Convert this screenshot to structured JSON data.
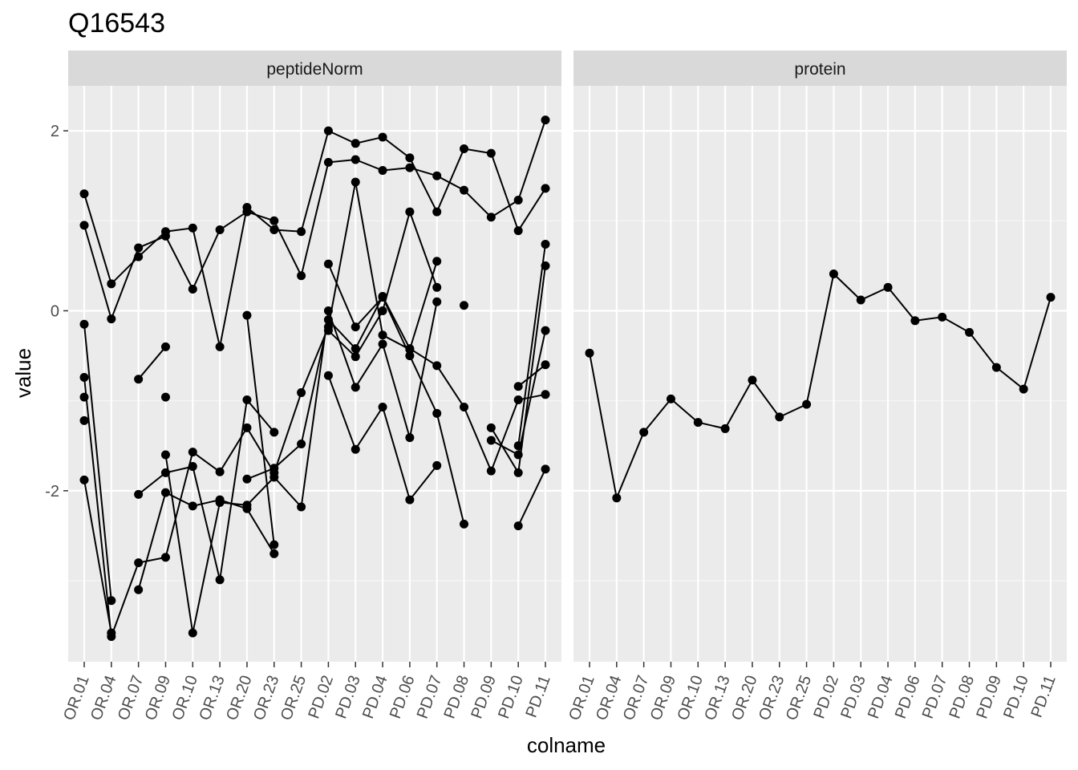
{
  "chart_data": {
    "type": "line",
    "title": "Q16543",
    "xlabel": "colname",
    "ylabel": "value",
    "ylim": [
      -3.9,
      2.5
    ],
    "y_ticks": [
      {
        "value": -2,
        "label": "-2"
      },
      {
        "value": 0,
        "label": "0"
      },
      {
        "value": 2,
        "label": "2"
      }
    ],
    "categories": [
      "OR.01",
      "OR.04",
      "OR.07",
      "OR.09",
      "OR.10",
      "OR.13",
      "OR.20",
      "OR.23",
      "OR.25",
      "PD.02",
      "PD.03",
      "PD.04",
      "PD.06",
      "PD.07",
      "PD.08",
      "PD.09",
      "PD.10",
      "PD.11"
    ],
    "grid": true,
    "panels": [
      {
        "strip": "peptideNorm",
        "series": [
          {
            "values": [
              1.3,
              0.3,
              0.6,
              0.88,
              0.92,
              -0.4,
              1.15,
              0.9,
              0.88,
              2.0,
              1.86,
              1.93,
              1.7,
              1.1,
              1.8,
              1.75,
              0.89,
              1.36
            ]
          },
          {
            "values": [
              0.95,
              -0.09,
              0.7,
              0.83,
              0.24,
              0.9,
              1.1,
              1.0,
              0.39,
              1.65,
              1.68,
              1.56,
              1.59,
              1.5,
              1.34,
              1.04,
              1.23,
              2.12
            ]
          },
          {
            "values": [
              -0.15,
              -3.22,
              null,
              null,
              null,
              null,
              -0.05,
              -2.6,
              null,
              0.52,
              -0.18,
              0.15,
              -0.5,
              -1.14,
              -2.37,
              null,
              -1.5,
              0.74
            ]
          },
          {
            "values": [
              -0.74,
              -3.62,
              -2.8,
              -2.74,
              -1.57,
              -1.79,
              -1.3,
              -1.8,
              -0.91,
              -0.18,
              1.43,
              -0.27,
              -0.43,
              0.55,
              null,
              -1.3,
              -1.8,
              0.5
            ]
          },
          {
            "values": [
              -0.96,
              null,
              -3.1,
              -2.02,
              -2.17,
              -2.1,
              -2.2,
              -2.7,
              null,
              -0.72,
              -1.54,
              -1.07,
              -2.1,
              -1.72,
              null,
              -1.44,
              -1.6,
              -0.22
            ]
          },
          {
            "values": [
              -1.22,
              null,
              -2.04,
              -1.8,
              -1.73,
              -2.99,
              -0.99,
              -1.35,
              null,
              -0.22,
              -0.51,
              0.0,
              1.1,
              0.26,
              null,
              null,
              -0.84,
              -0.6
            ]
          },
          {
            "values": [
              -1.88,
              -3.58,
              null,
              -1.6,
              -3.58,
              -2.13,
              -2.16,
              -1.85,
              -2.18,
              0.0,
              -0.85,
              -0.37,
              -1.41,
              0.1,
              null,
              null,
              -2.39,
              -1.76
            ]
          },
          {
            "values": [
              null,
              null,
              null,
              null,
              null,
              null,
              -1.87,
              -1.75,
              -1.48,
              -0.1,
              -0.42,
              0.16,
              -0.42,
              -0.61,
              -1.07,
              -1.78,
              -0.99,
              -0.93
            ]
          },
          {
            "values": [
              null,
              null,
              -0.76,
              -0.4,
              null,
              null,
              null,
              null,
              null,
              null,
              null,
              null,
              null,
              null,
              0.06,
              null,
              null,
              null
            ]
          },
          {
            "values": [
              null,
              null,
              null,
              -0.96,
              null,
              null,
              null,
              null,
              null,
              null,
              null,
              null,
              null,
              null,
              null,
              null,
              null,
              null
            ]
          }
        ]
      },
      {
        "strip": "protein",
        "series": [
          {
            "values": [
              -0.47,
              -2.08,
              -1.35,
              -0.98,
              -1.24,
              -1.31,
              -0.77,
              -1.18,
              -1.04,
              0.41,
              0.12,
              0.26,
              -0.11,
              -0.07,
              -0.24,
              -0.63,
              -0.87,
              0.15
            ]
          }
        ]
      }
    ]
  }
}
